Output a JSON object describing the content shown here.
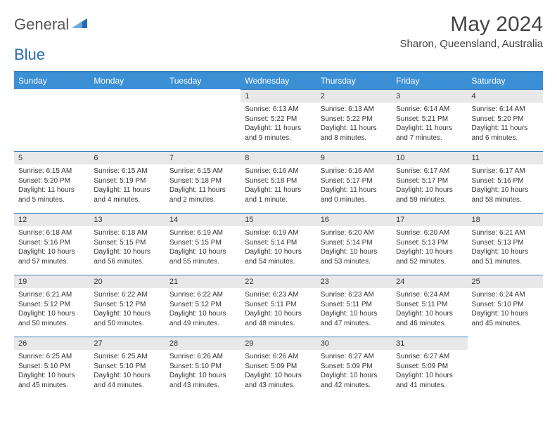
{
  "logo": {
    "part1": "General",
    "part2": "Blue"
  },
  "title": "May 2024",
  "location": "Sharon, Queensland, Australia",
  "colors": {
    "header_bg": "#3b8fd4",
    "header_text": "#ffffff",
    "rule": "#3b7fbf",
    "daynum_bg": "#e8e8e8",
    "text": "#333333",
    "logo_gray": "#555555",
    "logo_blue": "#2a6bb0"
  },
  "weekdays": [
    "Sunday",
    "Monday",
    "Tuesday",
    "Wednesday",
    "Thursday",
    "Friday",
    "Saturday"
  ],
  "weeks": [
    [
      null,
      null,
      null,
      {
        "n": "1",
        "sr": "6:13 AM",
        "ss": "5:22 PM",
        "dl": "11 hours and 9 minutes."
      },
      {
        "n": "2",
        "sr": "6:13 AM",
        "ss": "5:22 PM",
        "dl": "11 hours and 8 minutes."
      },
      {
        "n": "3",
        "sr": "6:14 AM",
        "ss": "5:21 PM",
        "dl": "11 hours and 7 minutes."
      },
      {
        "n": "4",
        "sr": "6:14 AM",
        "ss": "5:20 PM",
        "dl": "11 hours and 6 minutes."
      }
    ],
    [
      {
        "n": "5",
        "sr": "6:15 AM",
        "ss": "5:20 PM",
        "dl": "11 hours and 5 minutes."
      },
      {
        "n": "6",
        "sr": "6:15 AM",
        "ss": "5:19 PM",
        "dl": "11 hours and 4 minutes."
      },
      {
        "n": "7",
        "sr": "6:15 AM",
        "ss": "5:18 PM",
        "dl": "11 hours and 2 minutes."
      },
      {
        "n": "8",
        "sr": "6:16 AM",
        "ss": "5:18 PM",
        "dl": "11 hours and 1 minute."
      },
      {
        "n": "9",
        "sr": "6:16 AM",
        "ss": "5:17 PM",
        "dl": "11 hours and 0 minutes."
      },
      {
        "n": "10",
        "sr": "6:17 AM",
        "ss": "5:17 PM",
        "dl": "10 hours and 59 minutes."
      },
      {
        "n": "11",
        "sr": "6:17 AM",
        "ss": "5:16 PM",
        "dl": "10 hours and 58 minutes."
      }
    ],
    [
      {
        "n": "12",
        "sr": "6:18 AM",
        "ss": "5:16 PM",
        "dl": "10 hours and 57 minutes."
      },
      {
        "n": "13",
        "sr": "6:18 AM",
        "ss": "5:15 PM",
        "dl": "10 hours and 56 minutes."
      },
      {
        "n": "14",
        "sr": "6:19 AM",
        "ss": "5:15 PM",
        "dl": "10 hours and 55 minutes."
      },
      {
        "n": "15",
        "sr": "6:19 AM",
        "ss": "5:14 PM",
        "dl": "10 hours and 54 minutes."
      },
      {
        "n": "16",
        "sr": "6:20 AM",
        "ss": "5:14 PM",
        "dl": "10 hours and 53 minutes."
      },
      {
        "n": "17",
        "sr": "6:20 AM",
        "ss": "5:13 PM",
        "dl": "10 hours and 52 minutes."
      },
      {
        "n": "18",
        "sr": "6:21 AM",
        "ss": "5:13 PM",
        "dl": "10 hours and 51 minutes."
      }
    ],
    [
      {
        "n": "19",
        "sr": "6:21 AM",
        "ss": "5:12 PM",
        "dl": "10 hours and 50 minutes."
      },
      {
        "n": "20",
        "sr": "6:22 AM",
        "ss": "5:12 PM",
        "dl": "10 hours and 50 minutes."
      },
      {
        "n": "21",
        "sr": "6:22 AM",
        "ss": "5:12 PM",
        "dl": "10 hours and 49 minutes."
      },
      {
        "n": "22",
        "sr": "6:23 AM",
        "ss": "5:11 PM",
        "dl": "10 hours and 48 minutes."
      },
      {
        "n": "23",
        "sr": "6:23 AM",
        "ss": "5:11 PM",
        "dl": "10 hours and 47 minutes."
      },
      {
        "n": "24",
        "sr": "6:24 AM",
        "ss": "5:11 PM",
        "dl": "10 hours and 46 minutes."
      },
      {
        "n": "25",
        "sr": "6:24 AM",
        "ss": "5:10 PM",
        "dl": "10 hours and 45 minutes."
      }
    ],
    [
      {
        "n": "26",
        "sr": "6:25 AM",
        "ss": "5:10 PM",
        "dl": "10 hours and 45 minutes."
      },
      {
        "n": "27",
        "sr": "6:25 AM",
        "ss": "5:10 PM",
        "dl": "10 hours and 44 minutes."
      },
      {
        "n": "28",
        "sr": "6:26 AM",
        "ss": "5:10 PM",
        "dl": "10 hours and 43 minutes."
      },
      {
        "n": "29",
        "sr": "6:26 AM",
        "ss": "5:09 PM",
        "dl": "10 hours and 43 minutes."
      },
      {
        "n": "30",
        "sr": "6:27 AM",
        "ss": "5:09 PM",
        "dl": "10 hours and 42 minutes."
      },
      {
        "n": "31",
        "sr": "6:27 AM",
        "ss": "5:09 PM",
        "dl": "10 hours and 41 minutes."
      },
      null
    ]
  ],
  "labels": {
    "sunrise": "Sunrise: ",
    "sunset": "Sunset: ",
    "daylight": "Daylight: "
  }
}
